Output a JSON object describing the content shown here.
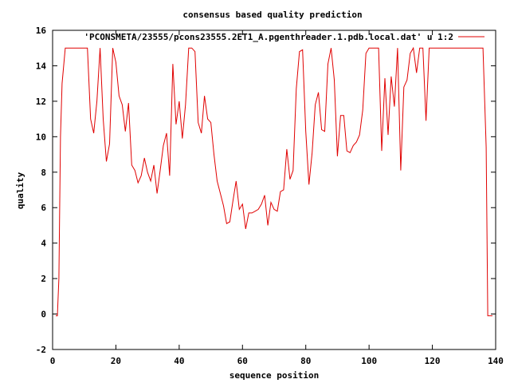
{
  "chart_data": {
    "type": "line",
    "title": "consensus based quality prediction",
    "xlabel": "sequence position",
    "ylabel": "quality",
    "xlim": [
      0,
      140
    ],
    "ylim": [
      -2,
      16
    ],
    "xticks": [
      0,
      20,
      40,
      60,
      80,
      100,
      120,
      140
    ],
    "yticks": [
      -2,
      0,
      2,
      4,
      6,
      8,
      10,
      12,
      14,
      16
    ],
    "grid": false,
    "legend_position": "top-right",
    "series": [
      {
        "name": "'PCONSMETA/23555/pcons23555.2ET1_A.pgenthreader.1.pdb.local.dat' u 1:2",
        "color": "#e00000",
        "x": [
          1,
          1.5,
          2,
          2.5,
          3,
          4,
          5,
          6,
          7,
          8,
          9,
          10,
          11,
          12,
          13,
          14,
          15,
          16,
          17,
          18,
          19,
          20,
          21,
          22,
          23,
          24,
          25,
          26,
          27,
          28,
          29,
          30,
          31,
          32,
          33,
          34,
          35,
          36,
          37,
          38,
          39,
          40,
          41,
          42,
          43,
          44,
          45,
          46,
          47,
          48,
          49,
          50,
          51,
          52,
          53,
          54,
          55,
          56,
          57,
          58,
          59,
          60,
          61,
          62,
          63,
          64,
          65,
          66,
          67,
          68,
          69,
          70,
          71,
          72,
          73,
          74,
          75,
          76,
          77,
          78,
          79,
          80,
          81,
          82,
          83,
          84,
          85,
          86,
          87,
          88,
          89,
          90,
          91,
          92,
          93,
          94,
          95,
          96,
          97,
          98,
          99,
          100,
          101,
          102,
          103,
          104,
          105,
          106,
          107,
          108,
          109,
          110,
          111,
          112,
          113,
          114,
          115,
          116,
          117,
          118,
          119,
          120,
          121,
          122,
          123,
          124,
          125,
          126,
          127,
          128,
          129,
          130,
          131,
          132,
          133,
          134,
          135,
          136,
          137,
          137.5,
          138,
          139
        ],
        "y": [
          -0.1,
          -0.1,
          2,
          10,
          13,
          15,
          15,
          15,
          15,
          15,
          15,
          15,
          15,
          11,
          10.2,
          12,
          15,
          11,
          8.6,
          9.6,
          15,
          14.2,
          12.3,
          11.8,
          10.3,
          11.9,
          8.4,
          8.1,
          7.4,
          7.8,
          8.8,
          8,
          7.5,
          8.4,
          6.8,
          8.1,
          9.5,
          10.2,
          7.8,
          14.1,
          10.7,
          12,
          9.9,
          11.8,
          15,
          15,
          14.8,
          10.8,
          10.2,
          12.3,
          11,
          10.8,
          9,
          7.5,
          6.8,
          6.1,
          5.1,
          5.2,
          6.4,
          7.5,
          5.9,
          6.2,
          4.8,
          5.7,
          5.7,
          5.8,
          5.9,
          6.2,
          6.7,
          5,
          6.3,
          5.9,
          5.8,
          6.9,
          7,
          9.3,
          7.6,
          8.1,
          12.7,
          14.8,
          14.9,
          10.3,
          7.3,
          9.1,
          11.8,
          12.5,
          10.4,
          10.3,
          14.1,
          15,
          13.2,
          8.9,
          11.2,
          11.2,
          9.2,
          9.1,
          9.5,
          9.7,
          10.1,
          11.5,
          14.7,
          15,
          15,
          15,
          15,
          9.2,
          13.3,
          10.1,
          13.4,
          11.7,
          15,
          8.1,
          12.8,
          13.2,
          14.7,
          15,
          13.6,
          15,
          15,
          10.9,
          15,
          15,
          15,
          15,
          15,
          15,
          15,
          15,
          15,
          15,
          15,
          15,
          15,
          15,
          15,
          15,
          15,
          15,
          9.4,
          -0.1,
          -0.1,
          -0.1
        ]
      }
    ]
  }
}
